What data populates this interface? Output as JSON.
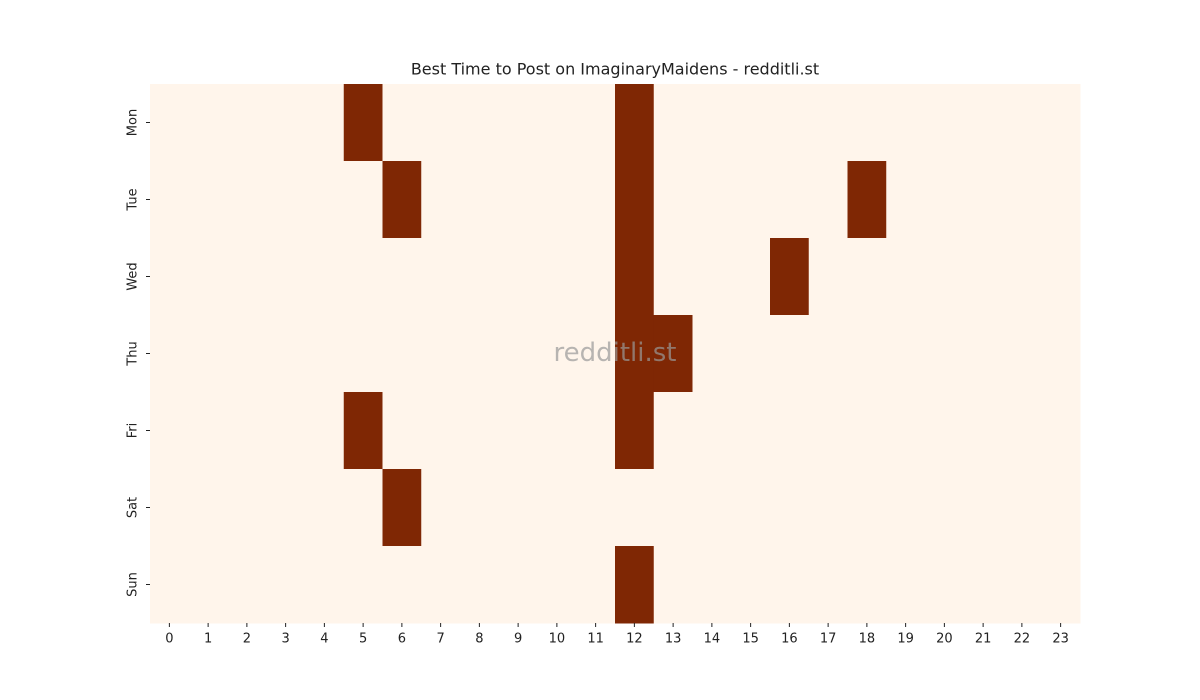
{
  "chart_data": {
    "type": "heatmap",
    "title": "Best Time to Post on ImaginaryMaidens - redditli.st",
    "categories": [
      0,
      1,
      2,
      3,
      4,
      5,
      6,
      7,
      8,
      9,
      10,
      11,
      12,
      13,
      14,
      15,
      16,
      17,
      18,
      19,
      20,
      21,
      22,
      23
    ],
    "rows": [
      "Mon",
      "Tue",
      "Wed",
      "Thu",
      "Fri",
      "Sat",
      "Sun"
    ],
    "values": [
      [
        0,
        0,
        0,
        0,
        0,
        1,
        0,
        0,
        0,
        0,
        0,
        0,
        1,
        0,
        0,
        0,
        0,
        0,
        0,
        0,
        0,
        0,
        0,
        0
      ],
      [
        0,
        0,
        0,
        0,
        0,
        0,
        1,
        0,
        0,
        0,
        0,
        0,
        1,
        0,
        0,
        0,
        0,
        0,
        1,
        0,
        0,
        0,
        0,
        0
      ],
      [
        0,
        0,
        0,
        0,
        0,
        0,
        0,
        0,
        0,
        0,
        0,
        0,
        1,
        0,
        0,
        0,
        1,
        0,
        0,
        0,
        0,
        0,
        0,
        0
      ],
      [
        0,
        0,
        0,
        0,
        0,
        0,
        0,
        0,
        0,
        0,
        0,
        0,
        1,
        1,
        0,
        0,
        0,
        0,
        0,
        0,
        0,
        0,
        0,
        0
      ],
      [
        0,
        0,
        0,
        0,
        0,
        1,
        0,
        0,
        0,
        0,
        0,
        0,
        1,
        0,
        0,
        0,
        0,
        0,
        0,
        0,
        0,
        0,
        0,
        0
      ],
      [
        0,
        0,
        0,
        0,
        0,
        0,
        1,
        0,
        0,
        0,
        0,
        0,
        0,
        0,
        0,
        0,
        0,
        0,
        0,
        0,
        0,
        0,
        0,
        0
      ],
      [
        0,
        0,
        0,
        0,
        0,
        0,
        0,
        0,
        0,
        0,
        0,
        0,
        1,
        0,
        0,
        0,
        0,
        0,
        0,
        0,
        0,
        0,
        0,
        0
      ]
    ],
    "colors": [
      "#fff5eb",
      "#7f2704"
    ],
    "watermark": "redditli.st"
  }
}
